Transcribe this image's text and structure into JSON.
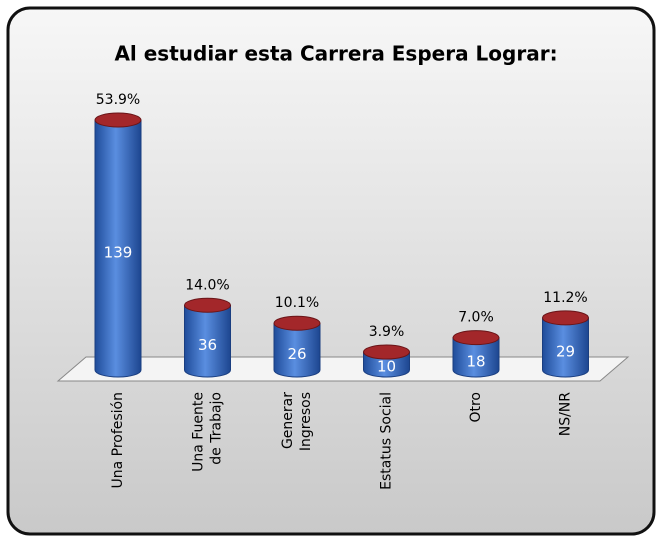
{
  "chart_data": {
    "type": "cylinder",
    "title": "Al estudiar esta Carrera Espera Lograr:",
    "categories": [
      [
        "Una Profesión"
      ],
      [
        "Una Fuente",
        "de Trabajo"
      ],
      [
        "Generar",
        "Ingresos"
      ],
      [
        "Estatus Social"
      ],
      [
        "Otro"
      ],
      [
        "NS/NR"
      ]
    ],
    "values": [
      139,
      36,
      26,
      10,
      18,
      29
    ],
    "percent_labels": [
      "53.9%",
      "14.0%",
      "10.1%",
      "3.9%",
      "7.0%",
      "11.2%"
    ],
    "color": "#3b6fc4",
    "top_color": "#a3272a"
  }
}
